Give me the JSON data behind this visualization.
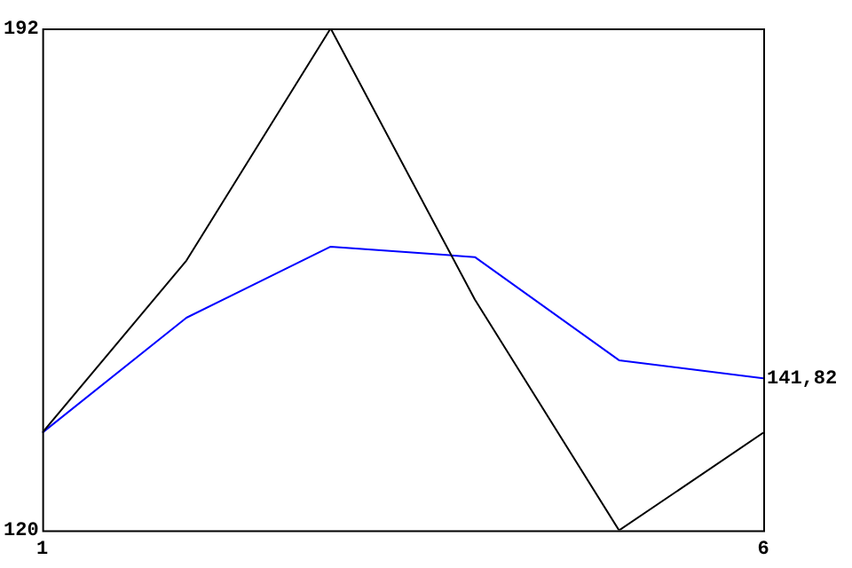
{
  "chart_data": {
    "type": "line",
    "x": [
      1,
      2,
      3,
      4,
      5,
      6
    ],
    "series": [
      {
        "color": "#000000",
        "values": [
          134,
          158.7,
          192,
          153.1,
          120,
          134
        ]
      },
      {
        "color": "#0000ff",
        "values": [
          134,
          150.5,
          160.7,
          159.2,
          144.4,
          141.82
        ]
      }
    ],
    "xlim": [
      1,
      6
    ],
    "xticks": [
      1,
      6
    ],
    "ylim": [
      120,
      192
    ],
    "yticks": [
      120,
      192
    ],
    "annotations": [
      {
        "text": "141,82",
        "x": 6,
        "y": 141.82
      }
    ],
    "grid": false,
    "legend": false,
    "marker": "none",
    "line_style": "solid"
  }
}
